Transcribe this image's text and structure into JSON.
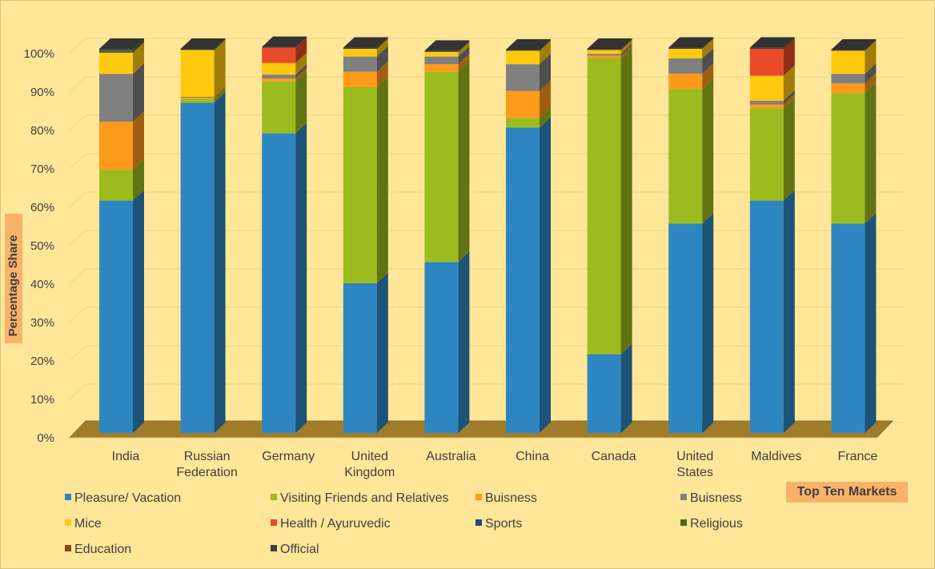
{
  "chart_data": {
    "type": "bar",
    "stacked": true,
    "three_d": true,
    "xlabel": "Top Ten Markets",
    "ylabel": "Percentage Share",
    "ylim": [
      0,
      100
    ],
    "yticks": [
      "0%",
      "10%",
      "20%",
      "30%",
      "40%",
      "50%",
      "60%",
      "70%",
      "80%",
      "90%",
      "100%"
    ],
    "grid": true,
    "legend_position": "bottom",
    "categories": [
      [
        "India"
      ],
      [
        "Russian",
        "Federation"
      ],
      [
        "Germany"
      ],
      [
        "United",
        "Kingdom"
      ],
      [
        "Australia"
      ],
      [
        "China"
      ],
      [
        "Canada"
      ],
      [
        "United",
        "States"
      ],
      [
        "Maldives"
      ],
      [
        "France"
      ]
    ],
    "series": [
      {
        "name": "Pleasure/ Vacation",
        "color": "#2e86c1",
        "values": [
          60.5,
          86,
          78,
          39,
          44.5,
          79.5,
          20.5,
          54.5,
          60.5,
          54.5
        ]
      },
      {
        "name": "Visiting Friends and Relatives",
        "color": "#9cbb1e",
        "values": [
          8,
          1,
          13.5,
          51,
          49.5,
          2.5,
          77,
          35,
          24,
          34
        ]
      },
      {
        "name": "Buisness",
        "color": "#ff9a1a",
        "values": [
          12.5,
          0.3,
          0.8,
          4,
          2,
          7,
          0.7,
          4,
          1,
          2.5
        ]
      },
      {
        "name": "Buisness",
        "color": "#808080",
        "values": [
          12.5,
          0.2,
          1,
          4,
          2,
          7,
          0.5,
          4,
          1,
          2.5
        ]
      },
      {
        "name": "Mice",
        "color": "#ffc90e",
        "values": [
          5.5,
          12.2,
          3,
          2,
          1.2,
          3.5,
          1,
          2.5,
          6.5,
          6
        ]
      },
      {
        "name": "Health / Ayuruvedic",
        "color": "#e84a2a",
        "values": [
          0,
          0,
          4,
          0,
          0,
          0,
          0,
          0,
          7,
          0
        ]
      },
      {
        "name": "Sports",
        "color": "#1f4e79",
        "values": [
          0.3,
          0,
          0,
          0,
          0,
          0,
          0,
          0,
          0,
          0
        ]
      },
      {
        "name": "Religious",
        "color": "#4e6b1c",
        "values": [
          0.4,
          0,
          0,
          0,
          0,
          0,
          0,
          0,
          0,
          0
        ]
      },
      {
        "name": "Education",
        "color": "#8a4a12",
        "values": [
          0,
          0,
          0,
          0,
          0,
          0,
          0,
          0,
          0,
          0
        ]
      },
      {
        "name": "Official",
        "color": "#404040",
        "values": [
          0.3,
          0.3,
          0.2,
          0.3,
          0.3,
          0.3,
          0.3,
          0.3,
          0.3,
          0.3
        ]
      }
    ]
  }
}
